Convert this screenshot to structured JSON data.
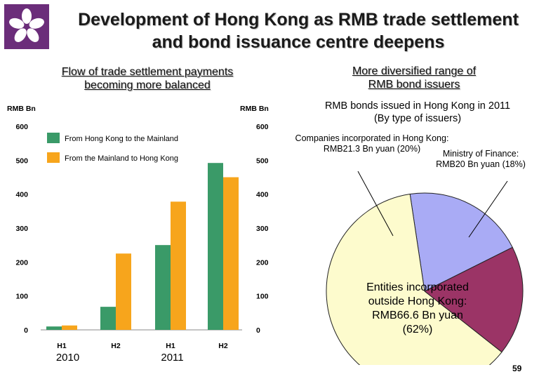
{
  "title": "Development of Hong Kong as RMB trade settlement and bond issuance centre deepens",
  "colors": {
    "series1": "#3a9a68",
    "series2": "#f7a51c",
    "logo_bg": "#6b2d7a",
    "pie_companies": "#a9abf5",
    "pie_mof": "#9b3466",
    "pie_entities": "#fdfbcd"
  },
  "logo": {
    "icon": "bauhinia-flower-icon"
  },
  "left_panel": {
    "subtitle_lines": [
      "Flow of trade settlement payments",
      "becoming more balanced"
    ]
  },
  "right_panel": {
    "subtitle_lines": [
      "More diversified range of",
      "RMB bond issuers"
    ],
    "pie_title_lines": [
      "RMB bonds issued in Hong Kong in 2011",
      "(By type of issuers)"
    ],
    "labels": {
      "companies": [
        "Companies incorporated in Hong Kong:",
        "RMB21.3 Bn yuan (20%)"
      ],
      "mof": [
        "Ministry of Finance:",
        "RMB20 Bn yuan (18%)"
      ],
      "entities": [
        "Entities incorporated",
        "outside Hong Kong:",
        "RMB66.6 Bn yuan",
        "(62%)"
      ]
    }
  },
  "page_number": "59",
  "chart_data": [
    {
      "type": "bar",
      "ylabel_left": "RMB Bn",
      "ylabel_right": "RMB Bn",
      "ylim": [
        0,
        600
      ],
      "yticks": [
        "0",
        "100",
        "200",
        "300",
        "400",
        "500",
        "600"
      ],
      "categories": [
        "H1",
        "H2",
        "H1",
        "H2"
      ],
      "years": [
        "2010",
        "2011"
      ],
      "series": [
        {
          "name": "From Hong Kong to the Mainland",
          "values": [
            10,
            68,
            250,
            492
          ]
        },
        {
          "name": "From the Mainland to Hong Kong",
          "values": [
            13,
            225,
            378,
            450
          ]
        }
      ],
      "legend_position": "top-left",
      "grid": false
    },
    {
      "type": "pie",
      "title": "RMB bonds issued in Hong Kong in 2011 (By type of issuers)",
      "slices": [
        {
          "label": "Companies incorporated in Hong Kong",
          "value": 21.3,
          "percent": 20
        },
        {
          "label": "Ministry of Finance",
          "value": 20,
          "percent": 18
        },
        {
          "label": "Entities incorporated outside Hong Kong",
          "value": 66.6,
          "percent": 62
        }
      ]
    }
  ]
}
